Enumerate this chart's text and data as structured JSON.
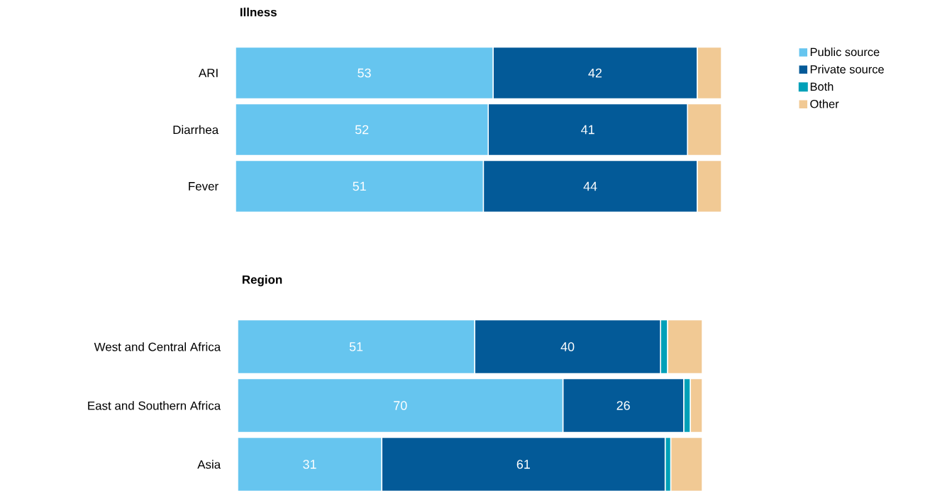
{
  "chart_data": [
    {
      "type": "bar",
      "orientation": "horizontal",
      "stacked": true,
      "title": "Illness",
      "categories": [
        "ARI",
        "Diarrhea",
        "Fever"
      ],
      "legend": "top right",
      "series": [
        {
          "name": "Public source",
          "color": "#66c5ef",
          "values": [
            53,
            52,
            51
          ],
          "value_labels": [
            "53",
            "52",
            "51"
          ]
        },
        {
          "name": "Private source",
          "color": "#035a98",
          "values": [
            42,
            41,
            44
          ],
          "value_labels": [
            "42",
            "41",
            "44"
          ]
        },
        {
          "name": "Both",
          "color": "#00a0b8",
          "values": [
            null,
            null,
            null
          ]
        },
        {
          "name": "Other",
          "color": "#f1c994",
          "values": [
            5,
            7,
            5
          ]
        }
      ]
    },
    {
      "type": "bar",
      "orientation": "horizontal",
      "stacked": true,
      "title": "Region",
      "categories": [
        "West and Central Africa",
        "East and Southern Africa",
        "Asia"
      ],
      "series": [
        {
          "color": "#66c5ef",
          "values": [
            51,
            70,
            31
          ],
          "value_labels": [
            "51",
            "70",
            "31"
          ]
        },
        {
          "color": "#035a98",
          "values": [
            40,
            26,
            61
          ],
          "value_labels": [
            "40",
            "26",
            "61"
          ]
        },
        {
          "color": "#00a0b8",
          "values": [
            1.5,
            1.4,
            1.2
          ]
        },
        {
          "color": "#f1c994",
          "values": [
            7.5,
            2.6,
            6.8
          ]
        }
      ]
    }
  ]
}
